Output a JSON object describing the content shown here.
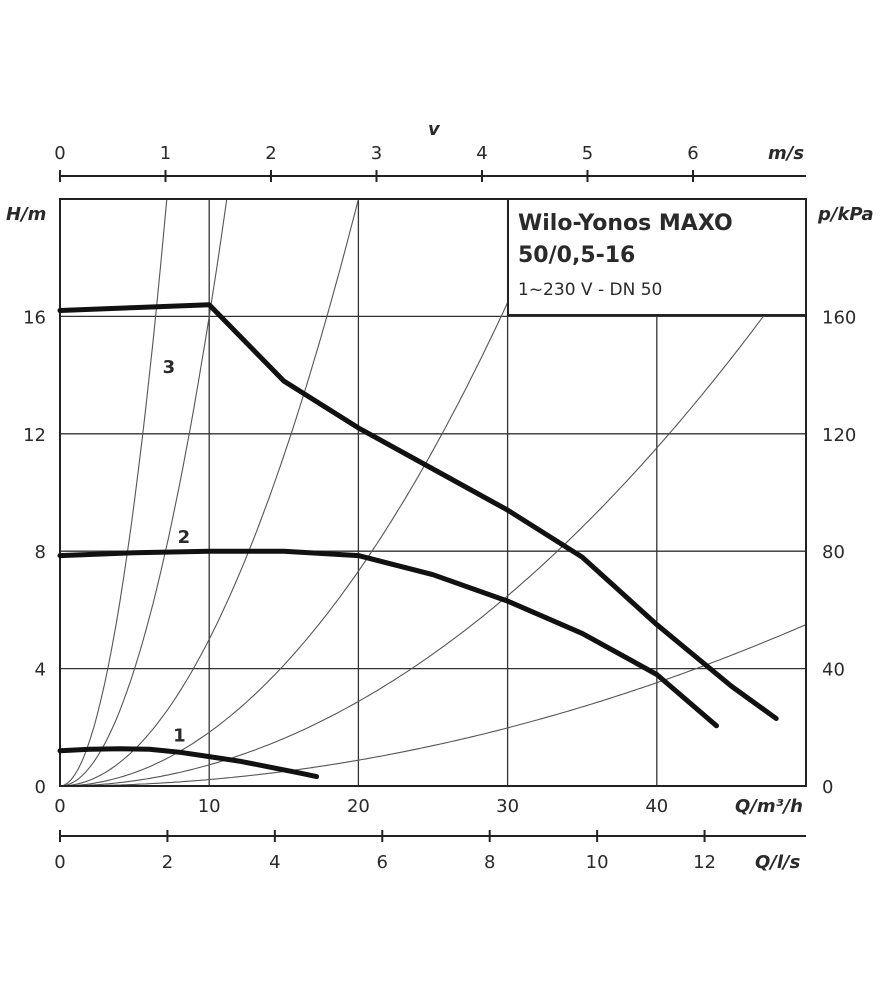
{
  "chart_data": {
    "type": "line",
    "title_line1": "Wilo-Yonos MAXO",
    "title_line2": "50/0,5-16",
    "subtitle": "1~230 V - DN 50",
    "ylabel": "H/m",
    "y2label": "p/kPa",
    "xlabel": "Q/m³/h",
    "x2label": "Q/l/s",
    "x3label": "v",
    "x3unit": "m/s",
    "xlim": [
      0,
      50
    ],
    "ylim": [
      0,
      20
    ],
    "x_ticks": [
      "0",
      "10",
      "20",
      "30",
      "40"
    ],
    "y_ticks": [
      "0",
      "4",
      "8",
      "12",
      "16"
    ],
    "y2_ticks": [
      "0",
      "40",
      "80",
      "120",
      "160"
    ],
    "x2_ticks": [
      "0",
      "2",
      "4",
      "6",
      "8",
      "10",
      "12"
    ],
    "x3_ticks": [
      "0",
      "1",
      "2",
      "3",
      "4",
      "5",
      "6"
    ],
    "grid": true,
    "series": [
      {
        "name": "1",
        "x": [
          0,
          2,
          4,
          6,
          8,
          10,
          12,
          14,
          16,
          17.2
        ],
        "y": [
          1.2,
          1.25,
          1.27,
          1.25,
          1.15,
          1.0,
          0.85,
          0.65,
          0.45,
          0.32
        ]
      },
      {
        "name": "2",
        "x": [
          0,
          5,
          10,
          15,
          20,
          25,
          30,
          35,
          40,
          44
        ],
        "y": [
          7.85,
          7.95,
          8.0,
          8.0,
          7.85,
          7.2,
          6.3,
          5.2,
          3.8,
          2.05
        ]
      },
      {
        "name": "3",
        "x": [
          0,
          5,
          10,
          15,
          20,
          25,
          30,
          35,
          40,
          45,
          48
        ],
        "y": [
          16.2,
          16.3,
          16.4,
          13.8,
          12.2,
          10.8,
          9.4,
          7.8,
          5.5,
          3.4,
          2.3
        ]
      }
    ],
    "system_curves_k": [
      0.39,
      0.16,
      0.05,
      0.0183,
      0.0072,
      0.0022
    ]
  }
}
